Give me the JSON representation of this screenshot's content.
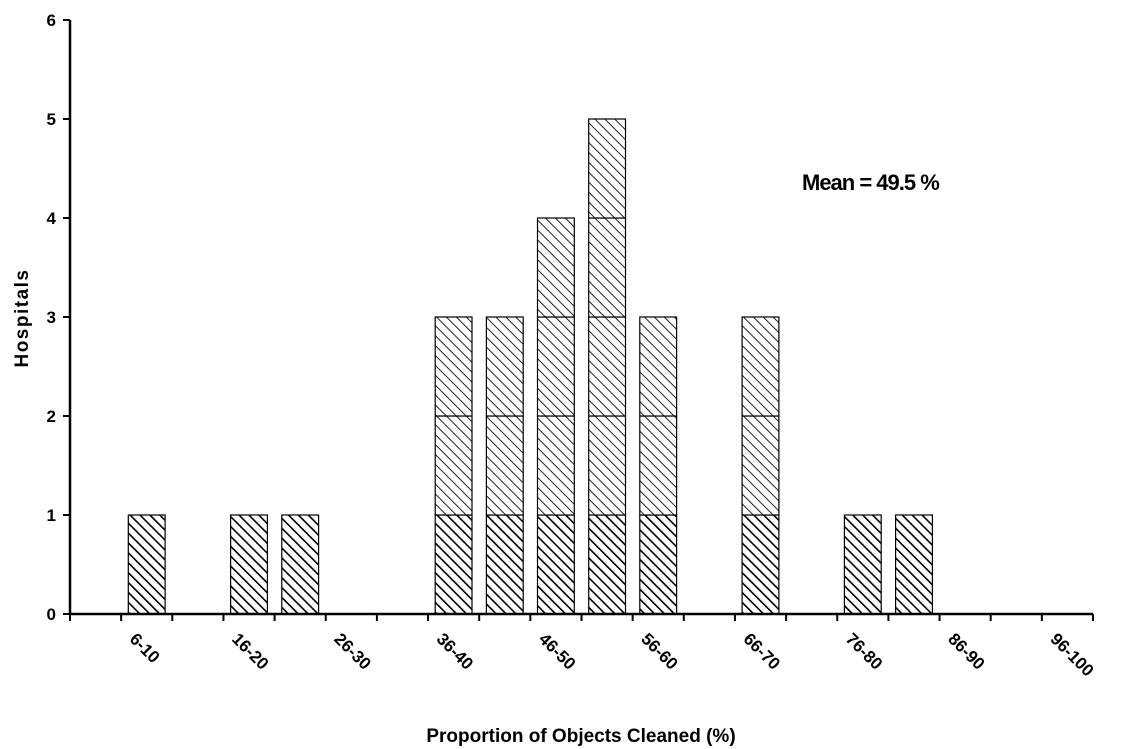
{
  "chart_data": {
    "type": "bar",
    "xlabel": "Proportion of Objects Cleaned (%)",
    "ylabel": "Hospitals",
    "ylim": [
      0,
      6
    ],
    "y_ticks": [
      "0",
      "1",
      "2",
      "3",
      "4",
      "5",
      "6"
    ],
    "x_tick_labels": [
      "6-10",
      "16-20",
      "26-30",
      "36-40",
      "46-50",
      "56-60",
      "66-70",
      "76-80",
      "86-90",
      "96-100"
    ],
    "annotation": "Mean = 49.5 %",
    "grid": false,
    "bars": [
      {
        "bin": "6-10",
        "value": 1
      },
      {
        "bin": "16-20",
        "value": 1
      },
      {
        "bin": "21-25",
        "value": 1
      },
      {
        "bin": "36-40",
        "value": 3
      },
      {
        "bin": "41-45",
        "value": 3
      },
      {
        "bin": "46-50",
        "value": 4
      },
      {
        "bin": "51-55",
        "value": 5
      },
      {
        "bin": "56-60",
        "value": 3
      },
      {
        "bin": "66-70",
        "value": 3
      },
      {
        "bin": "76-80",
        "value": 1
      },
      {
        "bin": "81-85",
        "value": 1
      }
    ]
  }
}
